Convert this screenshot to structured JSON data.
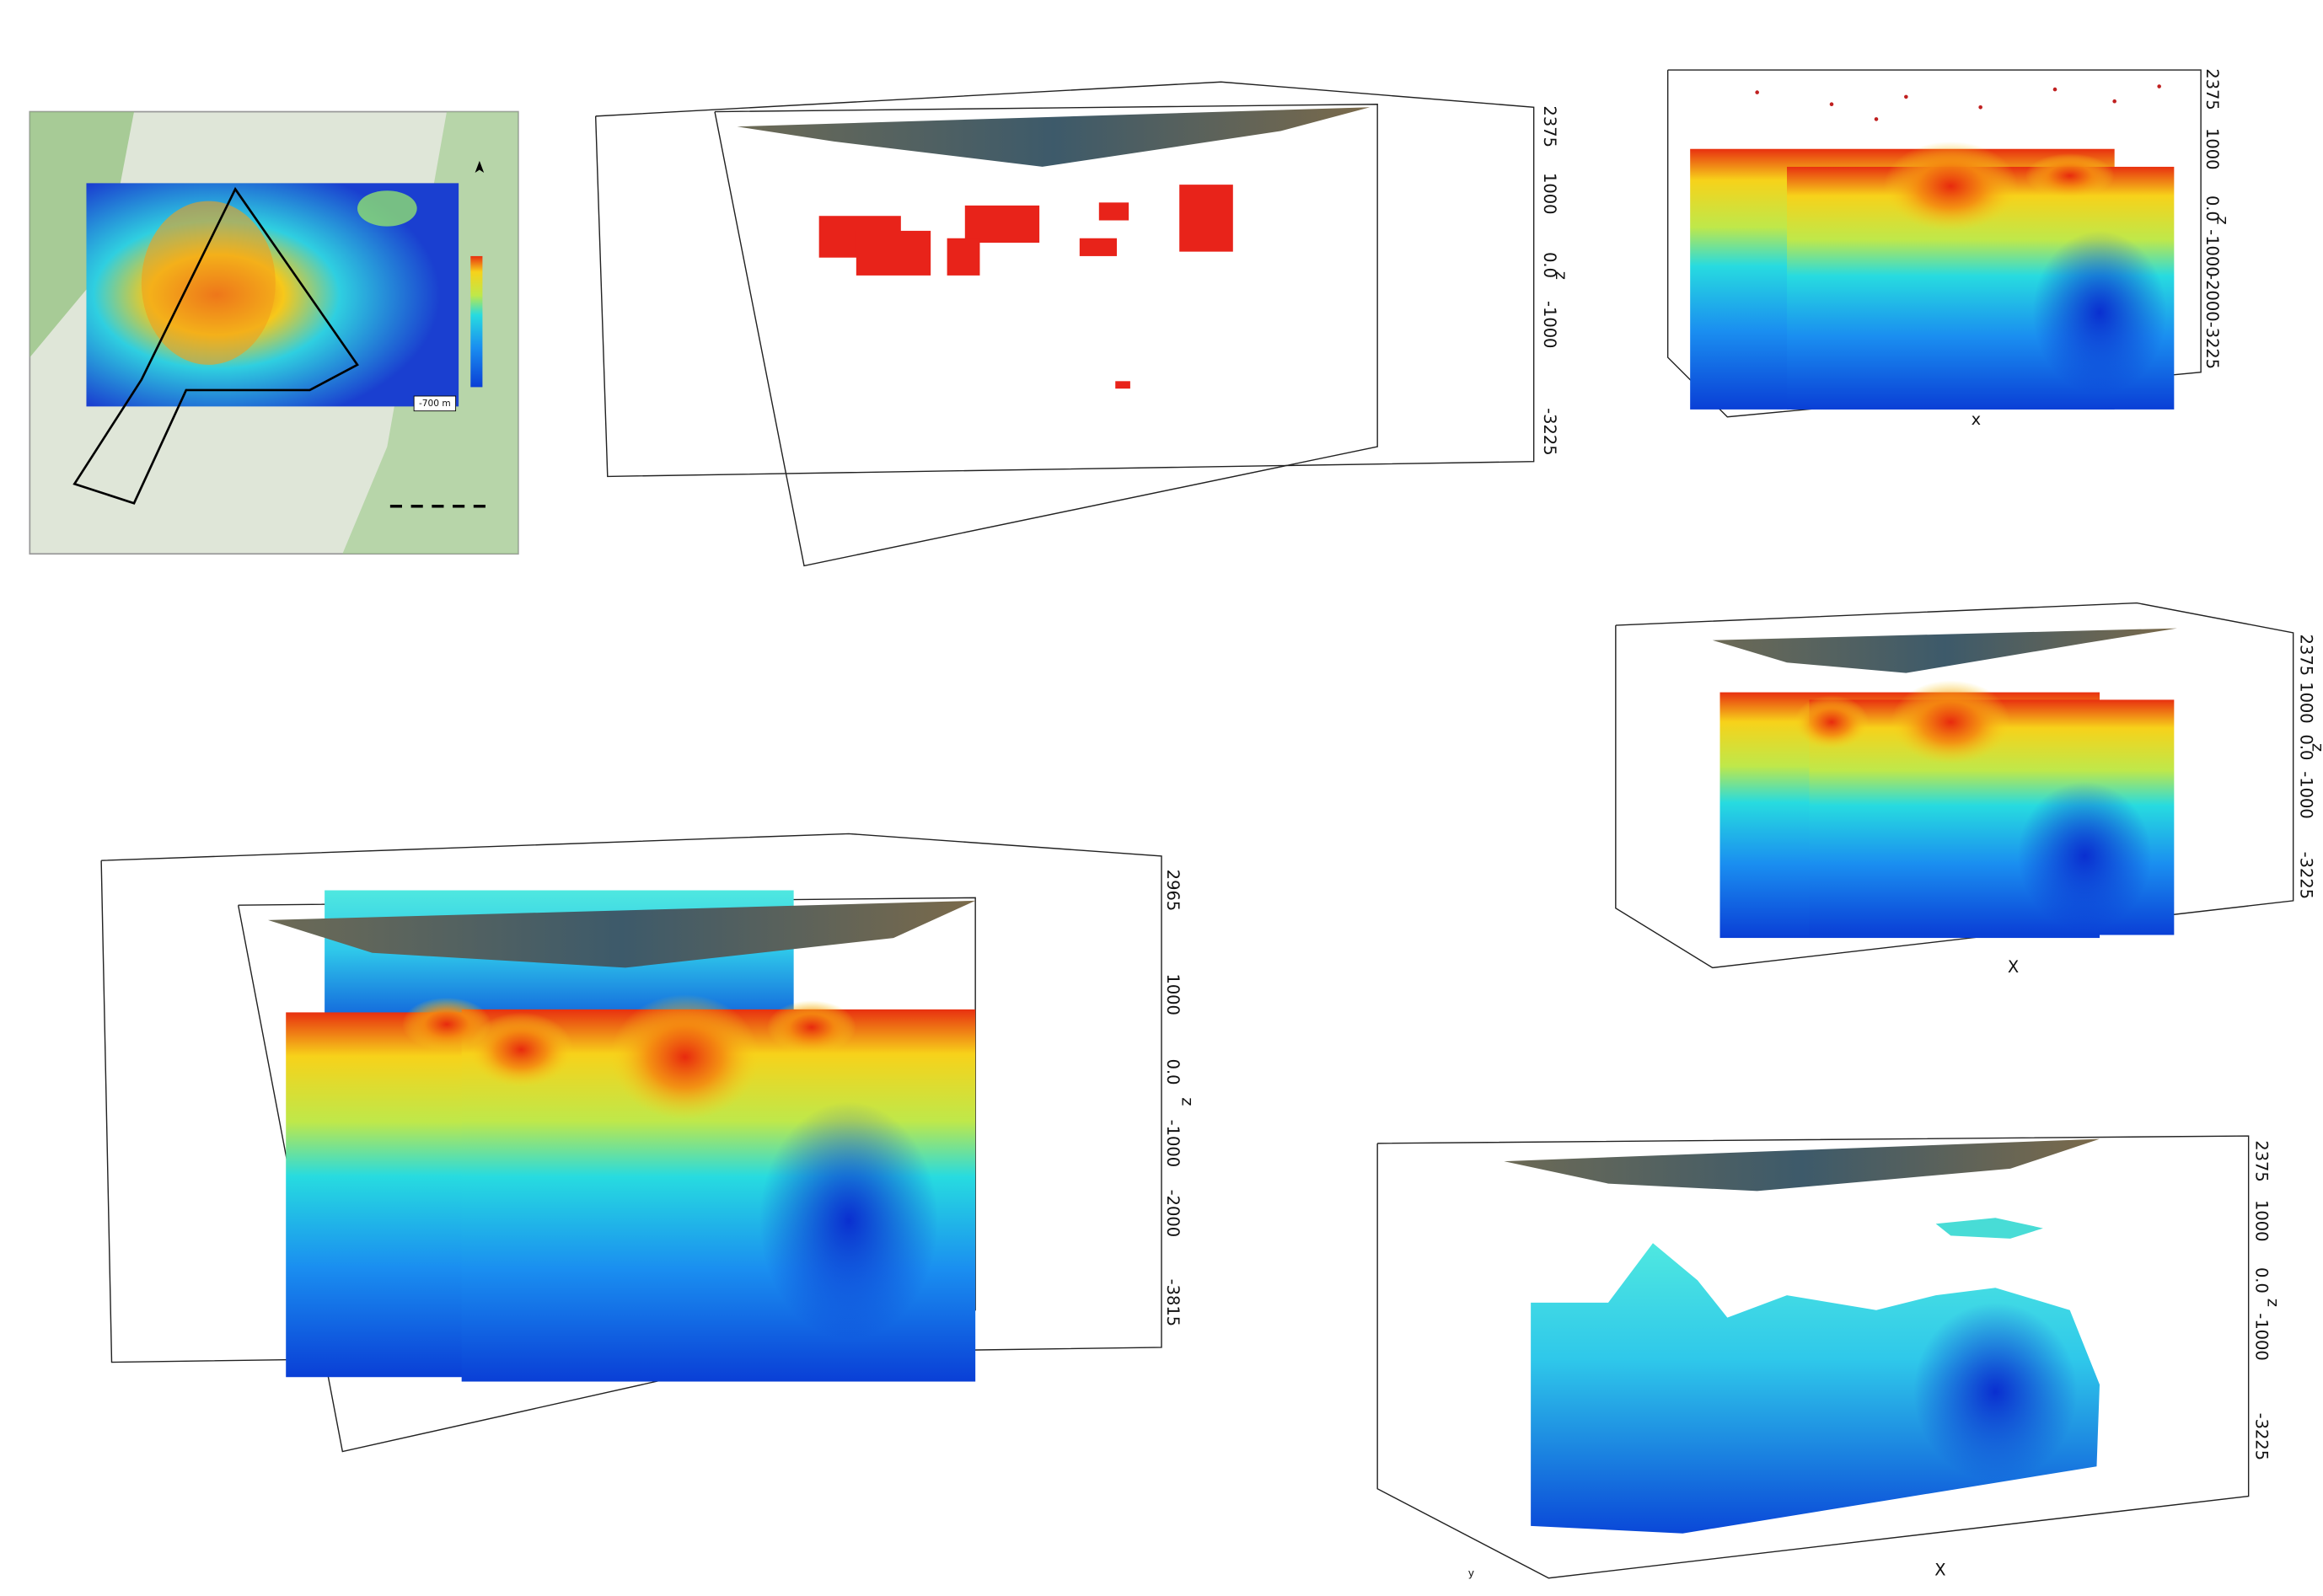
{
  "map": {
    "scale_label": "-700 m"
  },
  "panels": [
    {
      "z_label": "z",
      "z_ticks": [
        "2375",
        "1000",
        "0.0",
        "-1000",
        "-3225"
      ]
    },
    {
      "z_label": "z",
      "x_label": "x",
      "z_ticks": [
        "2375",
        "1000",
        "0.0",
        "-1000",
        "-2000",
        "-3225"
      ]
    },
    {
      "z_label": "z",
      "x_label": "X",
      "z_ticks": [
        "2375",
        "1000",
        "0.0",
        "-1000",
        "-3225"
      ]
    },
    {
      "z_label": "z",
      "z_ticks": [
        "2965",
        "1000",
        "0.0",
        "-1000",
        "-2000",
        "-3815"
      ]
    },
    {
      "z_label": "z",
      "x_label": "X",
      "y_label": "y",
      "z_ticks": [
        "2375",
        "1000",
        "0.0",
        "-1000",
        "-3225"
      ]
    }
  ]
}
